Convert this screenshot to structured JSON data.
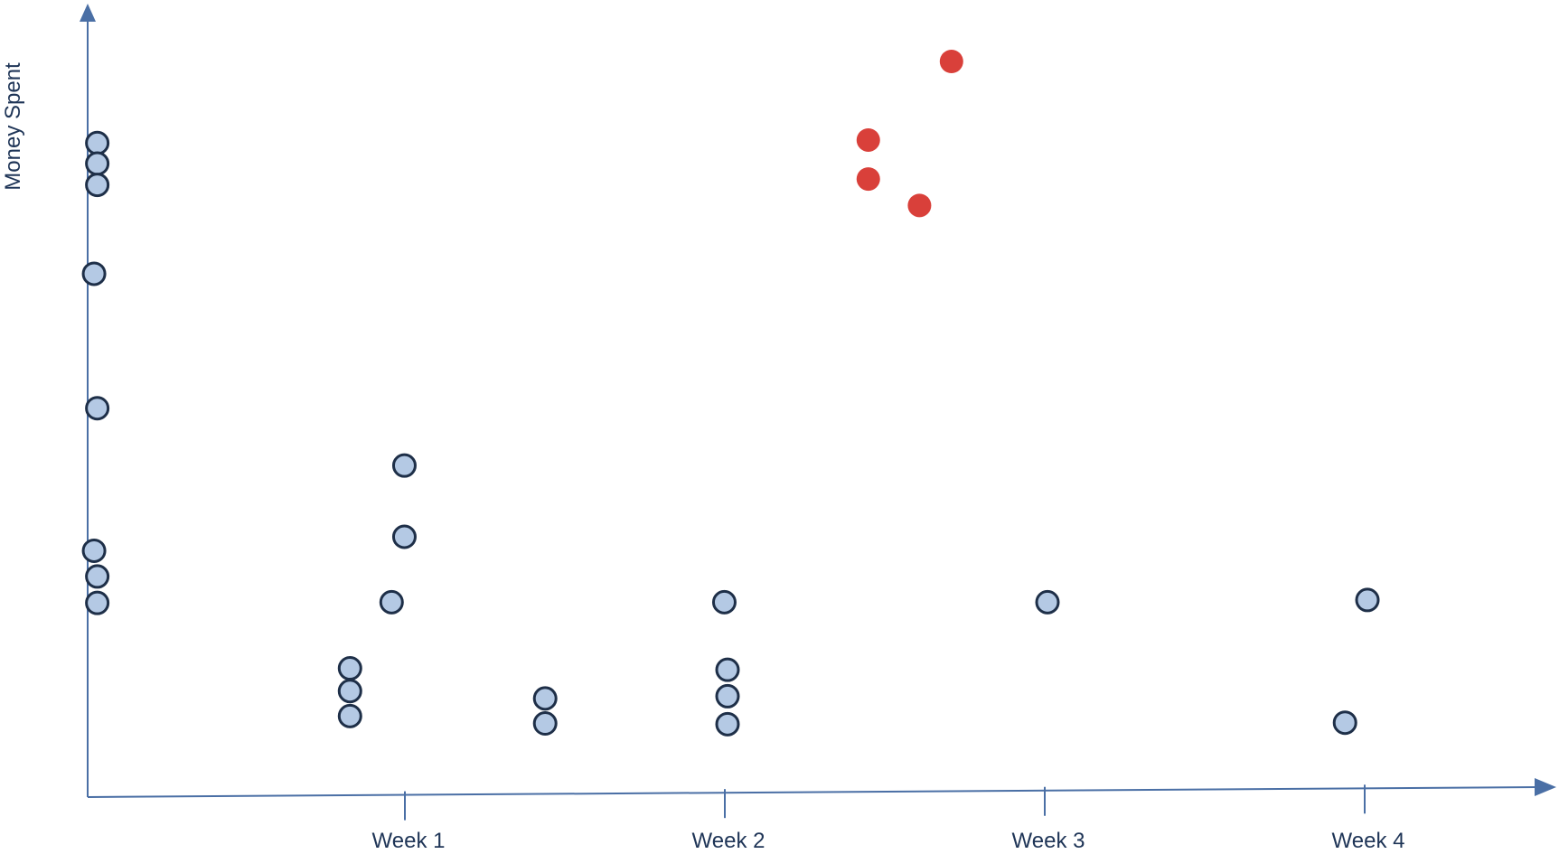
{
  "chart_data": {
    "type": "scatter",
    "title": "",
    "xlabel": "",
    "ylabel": "Money Spent",
    "categories": [
      "Week 1",
      "Week 2",
      "Week 3",
      "Week 4"
    ],
    "xlim": [
      0,
      4.55
    ],
    "ylim": [
      0,
      100
    ],
    "grid": false,
    "legend": "none",
    "colors": {
      "axis": "#4a6fa5",
      "normal_fill": "#b4c9e4",
      "normal_stroke": "#1e2f48",
      "highlight_fill": "#d9403a"
    },
    "series": [
      {
        "values": [
          {
            "x": 0.03,
            "y": 88.9
          },
          {
            "x": 0.03,
            "y": 86.1
          },
          {
            "x": 0.03,
            "y": 83.2
          },
          {
            "x": 0.02,
            "y": 71.1
          },
          {
            "x": 0.03,
            "y": 52.8
          },
          {
            "x": 0.02,
            "y": 33.4
          },
          {
            "x": 0.03,
            "y": 29.9
          },
          {
            "x": 0.03,
            "y": 26.3
          },
          {
            "x": 0.99,
            "y": 45.0
          },
          {
            "x": 0.99,
            "y": 35.3
          },
          {
            "x": 0.95,
            "y": 26.4
          },
          {
            "x": 0.82,
            "y": 17.4
          },
          {
            "x": 0.82,
            "y": 14.3
          },
          {
            "x": 0.82,
            "y": 10.9
          },
          {
            "x": 1.43,
            "y": 13.3
          },
          {
            "x": 1.43,
            "y": 9.9
          },
          {
            "x": 1.99,
            "y": 26.4
          },
          {
            "x": 2.0,
            "y": 17.2
          },
          {
            "x": 2.0,
            "y": 13.6
          },
          {
            "x": 2.0,
            "y": 9.8
          },
          {
            "x": 3.0,
            "y": 26.4
          },
          {
            "x": 4.0,
            "y": 26.7
          },
          {
            "x": 3.93,
            "y": 10.0
          }
        ]
      },
      {
        "values": [
          {
            "x": 2.7,
            "y": 100.0
          },
          {
            "x": 2.44,
            "y": 89.3
          },
          {
            "x": 2.44,
            "y": 84.0
          },
          {
            "x": 2.6,
            "y": 80.4
          }
        ]
      }
    ]
  }
}
